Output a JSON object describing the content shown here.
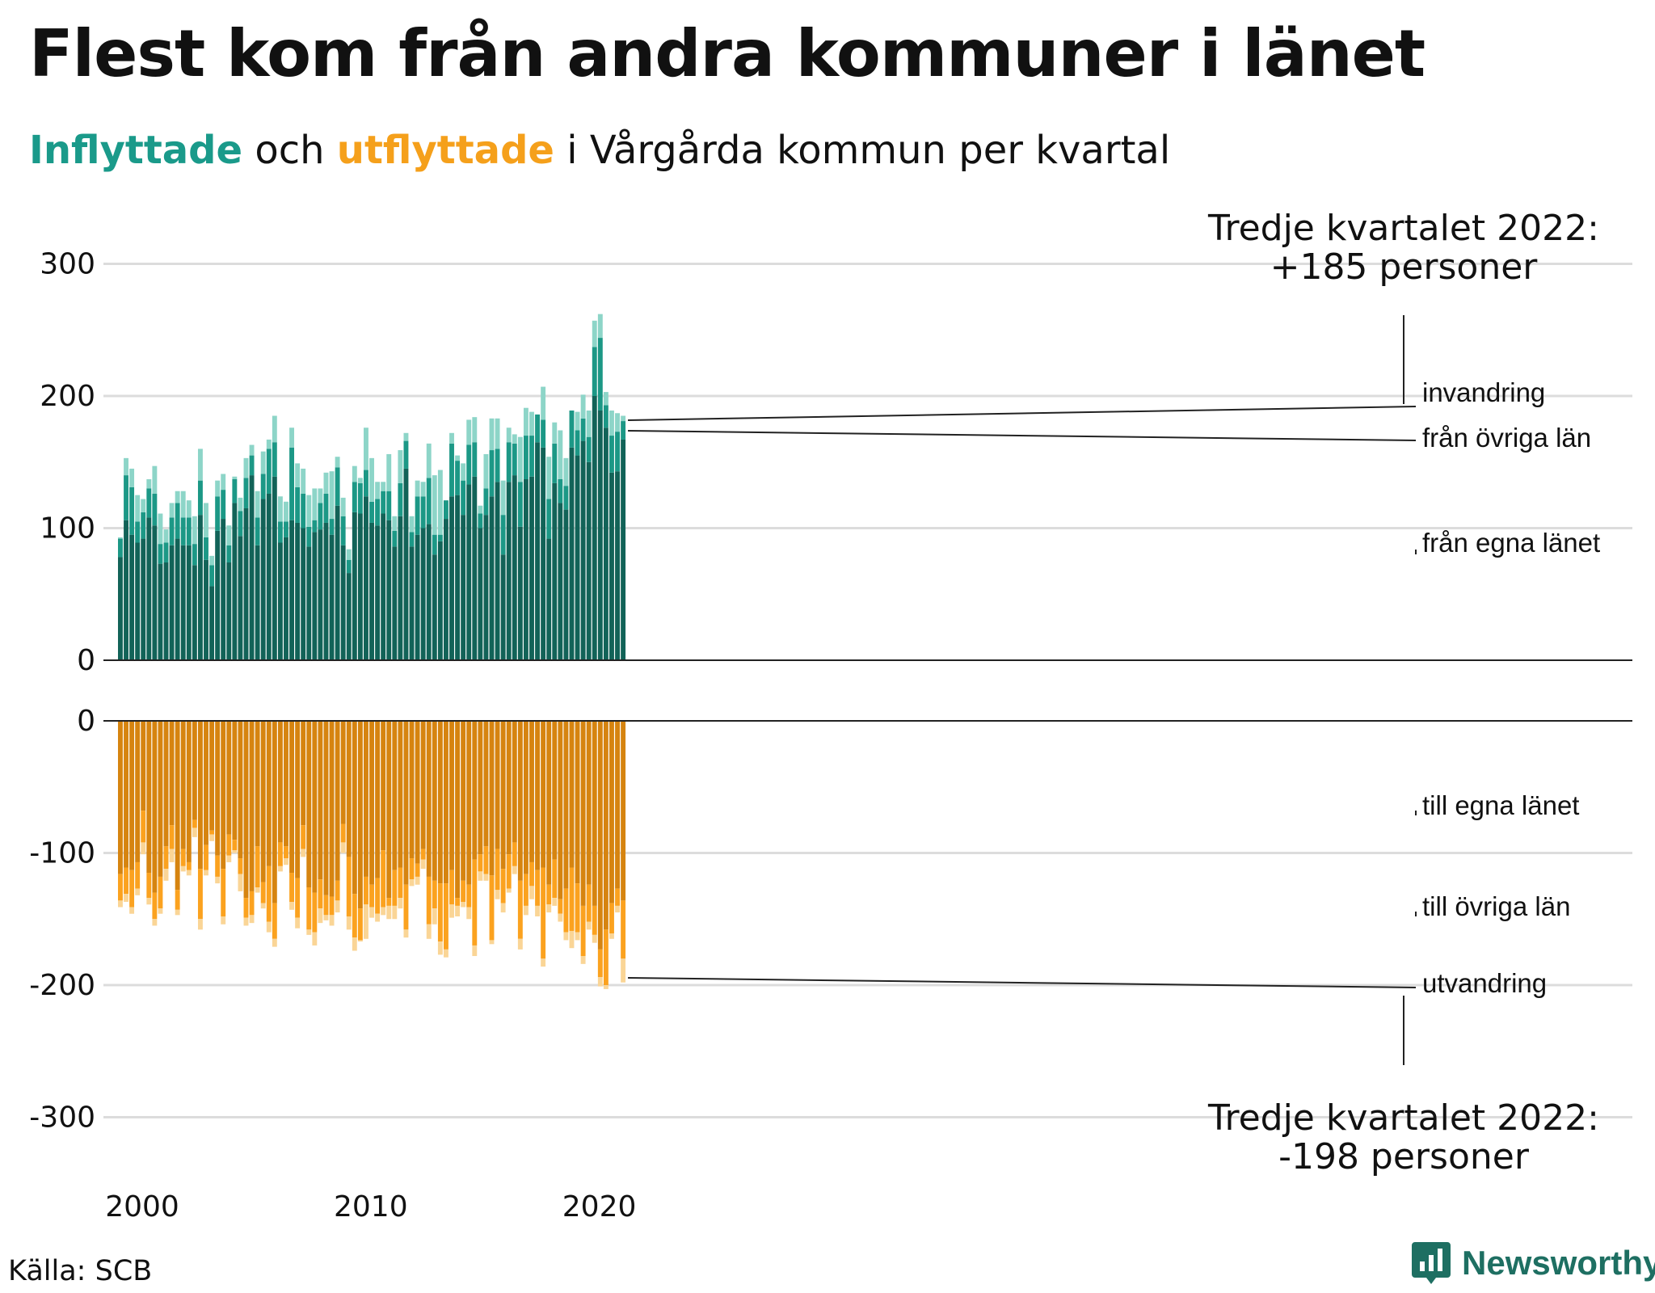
{
  "title": "Flest kom från andra kommuner i länet",
  "subtitle": {
    "in_word": "Inflyttade",
    "and_word": " och ",
    "out_word": "utflyttade",
    "rest": " i Vårgårda kommun per kvartal"
  },
  "source": "Källa: SCB",
  "brand": "Newsworthy",
  "colors": {
    "in_own_county": "#126358",
    "in_other_county": "#1c9886",
    "immigration": "#8dd5c8",
    "out_own_county": "#d68410",
    "out_other_county": "#fba21f",
    "emigration": "#fad596",
    "grid": "#dcdcdc",
    "axis": "#222222",
    "logo": "#1e6f62"
  },
  "chart_data": {
    "type": "bar",
    "stacked": true,
    "title": "Flest kom från andra kommuner i länet",
    "subtitle": "Inflyttade och utflyttade i Vårgårda kommun per kvartal",
    "x_period": "kvartal",
    "x_start": "2000 Q1",
    "x_end": "2022 Q3",
    "x_tick_labels": [
      "2000",
      "2010",
      "2020"
    ],
    "top_panel": {
      "y_ticks": [
        0,
        100,
        200,
        300
      ],
      "ylim": [
        0,
        300
      ],
      "series": [
        {
          "name": "från egna länet",
          "values": [
            78,
            106,
            95,
            89,
            92,
            108,
            102,
            73,
            74,
            87,
            92,
            87,
            87,
            72,
            110,
            76,
            56,
            98,
            107,
            74,
            119,
            94,
            115,
            140,
            87,
            122,
            126,
            139,
            89,
            93,
            106,
            104,
            100,
            86,
            97,
            99,
            104,
            95,
            117,
            87,
            66,
            112,
            111,
            124,
            104,
            102,
            111,
            106,
            86,
            109,
            145,
            86,
            95,
            100,
            103,
            80,
            90,
            107,
            124,
            125,
            110,
            133,
            139,
            100,
            110,
            124,
            135,
            80,
            135,
            140,
            101,
            137,
            139,
            165,
            161,
            92,
            134,
            119,
            114,
            161,
            155,
            166,
            150,
            200,
            189,
            176,
            142,
            143,
            167
          ]
        },
        {
          "name": "från övriga län",
          "values": [
            14,
            34,
            36,
            16,
            20,
            22,
            24,
            15,
            15,
            21,
            27,
            21,
            21,
            16,
            26,
            17,
            16,
            26,
            22,
            13,
            18,
            19,
            23,
            15,
            21,
            19,
            34,
            26,
            16,
            12,
            55,
            27,
            26,
            15,
            9,
            20,
            22,
            12,
            29,
            22,
            10,
            23,
            23,
            20,
            16,
            20,
            17,
            22,
            12,
            25,
            21,
            11,
            29,
            24,
            35,
            15,
            5,
            14,
            40,
            26,
            26,
            30,
            26,
            11,
            20,
            35,
            25,
            30,
            30,
            24,
            34,
            33,
            31,
            21,
            21,
            30,
            30,
            18,
            18,
            28,
            19,
            17,
            19,
            37,
            55,
            17,
            28,
            30,
            14
          ]
        },
        {
          "name": "invandring",
          "values": [
            1,
            13,
            14,
            20,
            10,
            7,
            21,
            23,
            10,
            11,
            9,
            20,
            13,
            21,
            24,
            26,
            7,
            12,
            12,
            15,
            2,
            10,
            15,
            8,
            20,
            17,
            7,
            20,
            19,
            15,
            15,
            18,
            19,
            24,
            24,
            11,
            16,
            36,
            8,
            14,
            8,
            12,
            4,
            32,
            33,
            13,
            7,
            28,
            11,
            25,
            6,
            12,
            12,
            11,
            26,
            45,
            49,
            0,
            8,
            4,
            13,
            19,
            19,
            6,
            26,
            24,
            23,
            26,
            11,
            7,
            34,
            21,
            18,
            0,
            25,
            32,
            16,
            37,
            21,
            0,
            14,
            18,
            20,
            20,
            18,
            10,
            19,
            14,
            4
          ]
        }
      ]
    },
    "bottom_panel": {
      "y_ticks": [
        0,
        -100,
        -200,
        -300
      ],
      "ylim": [
        -300,
        0
      ],
      "series": [
        {
          "name": "till egna länet",
          "values": [
            -116,
            -111,
            -113,
            -107,
            -68,
            -115,
            -130,
            -118,
            -95,
            -79,
            -128,
            -97,
            -107,
            -75,
            -112,
            -94,
            -83,
            -102,
            -112,
            -86,
            -90,
            -104,
            -134,
            -129,
            -95,
            -122,
            -110,
            -138,
            -92,
            -95,
            -115,
            -119,
            -79,
            -126,
            -130,
            -120,
            -132,
            -133,
            -121,
            -78,
            -103,
            -131,
            -142,
            -118,
            -124,
            -119,
            -98,
            -134,
            -113,
            -111,
            -124,
            -104,
            -108,
            -97,
            -118,
            -121,
            -123,
            -123,
            -113,
            -134,
            -121,
            -124,
            -105,
            -101,
            -95,
            -117,
            -97,
            -112,
            -101,
            -92,
            -121,
            -116,
            -107,
            -113,
            -111,
            -124,
            -105,
            -135,
            -127,
            -111,
            -123,
            -140,
            -124,
            -140,
            -173,
            -158,
            -138,
            -127,
            -136
          ]
        },
        {
          "name": "till övriga län",
          "values": [
            -20,
            -20,
            -28,
            -20,
            -24,
            -19,
            -20,
            -24,
            -17,
            -18,
            -15,
            -13,
            -6,
            -6,
            -38,
            -19,
            -3,
            -16,
            -36,
            -16,
            -8,
            -12,
            -15,
            -18,
            -31,
            -16,
            -42,
            -27,
            -18,
            -9,
            -22,
            -30,
            -18,
            -32,
            -30,
            -22,
            -15,
            -14,
            -15,
            -14,
            -45,
            -33,
            -24,
            -21,
            -17,
            -27,
            -43,
            -6,
            -27,
            -23,
            -34,
            -16,
            -10,
            -8,
            -36,
            -21,
            -44,
            -50,
            -26,
            -6,
            -16,
            -17,
            -65,
            -13,
            -21,
            -49,
            -31,
            -26,
            -26,
            -18,
            -44,
            -24,
            -18,
            -27,
            -69,
            -15,
            -29,
            -11,
            -33,
            -48,
            -37,
            -38,
            -28,
            -22,
            -21,
            -42,
            -23,
            -13,
            -44
          ]
        },
        {
          "name": "utvandring",
          "values": [
            -5,
            -6,
            -5,
            -5,
            -9,
            -5,
            -5,
            -4,
            -9,
            -10,
            -4,
            -4,
            -4,
            -7,
            -8,
            -4,
            -5,
            -5,
            -6,
            -5,
            -2,
            -13,
            -6,
            -6,
            -4,
            -4,
            -8,
            -6,
            -4,
            -5,
            -6,
            -8,
            -6,
            -4,
            -10,
            -11,
            -4,
            -8,
            -9,
            -8,
            -10,
            -10,
            -1,
            -26,
            -8,
            -6,
            -6,
            -10,
            -10,
            -8,
            -6,
            -5,
            -6,
            -7,
            -11,
            -12,
            -10,
            -6,
            -10,
            -8,
            -4,
            -9,
            -8,
            -7,
            -5,
            -3,
            -7,
            -7,
            -3,
            -6,
            -8,
            -7,
            -10,
            -8,
            -6,
            -6,
            -6,
            -6,
            -6,
            -13,
            -6,
            -6,
            -6,
            -6,
            -7,
            -3,
            -4,
            -5,
            -18
          ]
        }
      ]
    },
    "annotations": {
      "top_callout": [
        "Tredje kvartalet 2022:",
        "+185 personer"
      ],
      "bottom_callout": [
        "Tredje kvartalet 2022:",
        "-198 personer"
      ],
      "top_labels": [
        "invandring",
        "från övriga län",
        "från egna länet"
      ],
      "bottom_labels": [
        "till egna länet",
        "till övriga län",
        "utvandring"
      ]
    },
    "grid": true,
    "legend": "direct labels at right"
  }
}
